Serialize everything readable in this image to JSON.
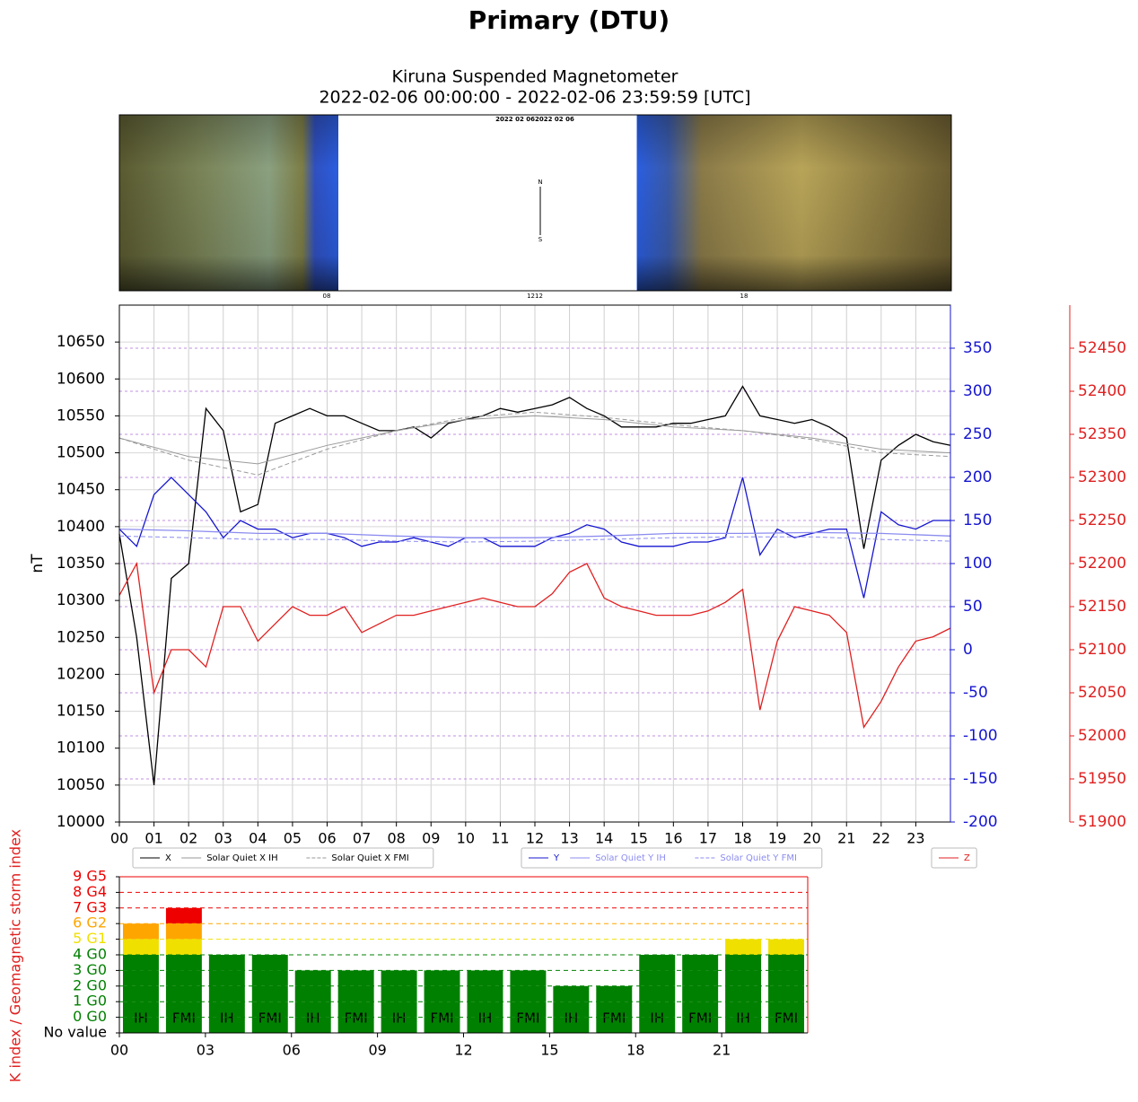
{
  "title": "Primary (DTU)",
  "keogram": {
    "title": "2022 02 062022 02 06",
    "ticks": [
      "08",
      "1212",
      "18"
    ],
    "north": "N",
    "south": "S"
  },
  "chart_data": [
    {
      "type": "line",
      "title": "Kiruna Suspended Magnetometer",
      "subtitle": "2022-02-06 00:00:00 - 2022-02-06 23:59:59 [UTC]",
      "y_label": "nT",
      "grid": true,
      "xlim": [
        0,
        24
      ],
      "xticks": [
        {
          "value": 0,
          "label": "00"
        },
        {
          "value": 1,
          "label": "01"
        },
        {
          "value": 2,
          "label": "02"
        },
        {
          "value": 3,
          "label": "03"
        },
        {
          "value": 4,
          "label": "04"
        },
        {
          "value": 5,
          "label": "05"
        },
        {
          "value": 6,
          "label": "06"
        },
        {
          "value": 7,
          "label": "07"
        },
        {
          "value": 8,
          "label": "08"
        },
        {
          "value": 9,
          "label": "09"
        },
        10,
        11,
        12,
        13,
        14,
        15,
        16,
        17,
        18,
        19,
        20,
        21,
        22,
        23
      ],
      "ylim": [
        10000,
        10700
      ],
      "yticks": [
        10000,
        10050,
        10100,
        10150,
        10200,
        10250,
        10300,
        10350,
        10400,
        10450,
        10500,
        10550,
        10600,
        10650
      ],
      "y2lim": [
        -200,
        400
      ],
      "y2color": "#1515d0",
      "y2ticks": [
        -200,
        -150,
        -100,
        -50,
        0,
        50,
        100,
        150,
        200,
        250,
        300,
        350
      ],
      "y3lim": [
        51900,
        52500
      ],
      "y3color": "#e02020",
      "y3ticks": [
        51900,
        51950,
        52000,
        52050,
        52100,
        52150,
        52200,
        52250,
        52300,
        52350,
        52400,
        52450
      ],
      "series": [
        {
          "name": "X",
          "color": "#000000",
          "axis": "y",
          "dash": "solid",
          "x": [
            0,
            0.5,
            1,
            1.5,
            2,
            2.5,
            3,
            3.5,
            4,
            4.5,
            5,
            5.5,
            6,
            6.5,
            7,
            7.5,
            8,
            8.5,
            9,
            9.5,
            10,
            10.5,
            11,
            11.5,
            12,
            12.5,
            13,
            13.5,
            14,
            14.5,
            15,
            15.5,
            16,
            16.5,
            17,
            17.5,
            18,
            18.5,
            19,
            19.5,
            20,
            20.5,
            21,
            21.5,
            22,
            22.5,
            23,
            23.5,
            24
          ],
          "values": [
            10390,
            10250,
            10050,
            10330,
            10350,
            10560,
            10530,
            10420,
            10430,
            10540,
            10550,
            10560,
            10550,
            10550,
            10540,
            10530,
            10530,
            10535,
            10520,
            10540,
            10545,
            10550,
            10560,
            10555,
            10560,
            10565,
            10575,
            10560,
            10550,
            10535,
            10535,
            10535,
            10540,
            10540,
            10545,
            10550,
            10590,
            10550,
            10545,
            10540,
            10545,
            10535,
            10520,
            10370,
            10490,
            10510,
            10525,
            10515,
            10510
          ]
        },
        {
          "name": "Solar Quiet X IH",
          "color": "#9a9a9a",
          "axis": "y",
          "dash": "solid",
          "x": [
            0,
            2,
            4,
            6,
            8,
            10,
            12,
            14,
            16,
            18,
            20,
            22,
            24
          ],
          "values": [
            10520,
            10495,
            10485,
            10510,
            10530,
            10545,
            10550,
            10545,
            10535,
            10530,
            10520,
            10505,
            10500
          ]
        },
        {
          "name": "Solar Quiet X FMI",
          "color": "#9a9a9a",
          "axis": "y",
          "dash": "dashed",
          "x": [
            0,
            2,
            4,
            6,
            8,
            10,
            12,
            14,
            16,
            18,
            20,
            22,
            24
          ],
          "values": [
            10520,
            10490,
            10470,
            10505,
            10530,
            10548,
            10555,
            10548,
            10538,
            10530,
            10518,
            10500,
            10495
          ]
        },
        {
          "name": "Y",
          "color": "#1515d0",
          "axis": "y2",
          "dash": "solid",
          "x": [
            0,
            0.5,
            1,
            1.5,
            2,
            2.5,
            3,
            3.5,
            4,
            4.5,
            5,
            5.5,
            6,
            6.5,
            7,
            7.5,
            8,
            8.5,
            9,
            9.5,
            10,
            10.5,
            11,
            11.5,
            12,
            12.5,
            13,
            13.5,
            14,
            14.5,
            15,
            15.5,
            16,
            16.5,
            17,
            17.5,
            18,
            18.5,
            19,
            19.5,
            20,
            20.5,
            21,
            21.5,
            22,
            22.5,
            23,
            23.5,
            24
          ],
          "values": [
            140,
            120,
            180,
            200,
            180,
            160,
            130,
            150,
            140,
            140,
            130,
            135,
            135,
            130,
            120,
            125,
            125,
            130,
            125,
            120,
            130,
            130,
            120,
            120,
            120,
            130,
            135,
            145,
            140,
            125,
            120,
            120,
            120,
            125,
            125,
            130,
            200,
            110,
            140,
            130,
            135,
            140,
            140,
            60,
            160,
            145,
            140,
            150,
            150
          ]
        },
        {
          "name": "Solar Quiet Y IH",
          "color": "#8c8cf0",
          "axis": "y2",
          "dash": "solid",
          "x": [
            0,
            2,
            4,
            6,
            8,
            10,
            12,
            14,
            16,
            18,
            20,
            22,
            24
          ],
          "values": [
            140,
            138,
            135,
            135,
            132,
            130,
            130,
            132,
            135,
            135,
            136,
            135,
            132
          ]
        },
        {
          "name": "Solar Quiet Y FMI",
          "color": "#8c8cf0",
          "axis": "y2",
          "dash": "dashed",
          "x": [
            0,
            2,
            4,
            6,
            8,
            10,
            12,
            14,
            16,
            18,
            20,
            22,
            24
          ],
          "values": [
            132,
            130,
            128,
            128,
            126,
            125,
            126,
            128,
            130,
            131,
            131,
            128,
            126
          ]
        },
        {
          "name": "Z",
          "color": "#e02020",
          "axis": "y3",
          "dash": "solid",
          "x": [
            0,
            0.5,
            1,
            1.5,
            2,
            2.5,
            3,
            3.5,
            4,
            4.5,
            5,
            5.5,
            6,
            6.5,
            7,
            7.5,
            8,
            8.5,
            9,
            9.5,
            10,
            10.5,
            11,
            11.5,
            12,
            12.5,
            13,
            13.5,
            14,
            14.5,
            15,
            15.5,
            16,
            16.5,
            17,
            17.5,
            18,
            18.5,
            19,
            19.5,
            20,
            20.5,
            21,
            21.5,
            22,
            22.5,
            23,
            23.5,
            24
          ],
          "values": [
            52163,
            52200,
            52050,
            52100,
            52100,
            52080,
            52150,
            52150,
            52110,
            52130,
            52150,
            52140,
            52140,
            52150,
            52120,
            52130,
            52140,
            52140,
            52145,
            52150,
            52155,
            52160,
            52155,
            52150,
            52150,
            52165,
            52190,
            52200,
            52160,
            52150,
            52145,
            52140,
            52140,
            52140,
            52145,
            52155,
            52170,
            52030,
            52110,
            52150,
            52145,
            52140,
            52120,
            52010,
            52040,
            52080,
            52110,
            52115,
            52125
          ]
        }
      ]
    },
    {
      "type": "bar",
      "y_label": "K index / Geomagnetic storm index",
      "xlim": [
        0,
        24
      ],
      "xticks": [
        {
          "value": 0,
          "label": "00"
        },
        {
          "value": 3,
          "label": "03"
        },
        {
          "value": 6,
          "label": "06"
        },
        {
          "value": 9,
          "label": "09"
        },
        12,
        15,
        18,
        21
      ],
      "ylim": [
        -1,
        9
      ],
      "yticks": [
        {
          "value": -1,
          "label": "No value",
          "color": "#000000"
        },
        {
          "value": 0,
          "label": "0 G0",
          "color": "#008000"
        },
        {
          "value": 1,
          "label": "1 G0",
          "color": "#008000"
        },
        {
          "value": 2,
          "label": "2 G0",
          "color": "#008000"
        },
        {
          "value": 3,
          "label": "3 G0",
          "color": "#008000"
        },
        {
          "value": 4,
          "label": "4 G0",
          "color": "#008000"
        },
        {
          "value": 5,
          "label": "5 G1",
          "color": "#f0e000"
        },
        {
          "value": 6,
          "label": "6 G2",
          "color": "#ffa500"
        },
        {
          "value": 7,
          "label": "7 G3",
          "color": "#ee0000"
        },
        {
          "value": 8,
          "label": "8 G4",
          "color": "#ee0000"
        },
        {
          "value": 9,
          "label": "9 G5",
          "color": "#ee0000"
        }
      ],
      "categories": [
        "IH",
        "FMI",
        "IH",
        "FMI",
        "IH",
        "FMI",
        "IH",
        "FMI",
        "IH",
        "FMI",
        "IH",
        "FMI",
        "IH",
        "FMI",
        "IH",
        "FMI"
      ],
      "x": [
        0.75,
        2.25,
        3.75,
        5.25,
        6.75,
        8.25,
        9.75,
        11.25,
        12.75,
        14.25,
        15.75,
        17.25,
        18.75,
        20.25,
        21.75,
        23.25
      ],
      "values": [
        6,
        7,
        4,
        4,
        3,
        3,
        3,
        3,
        3,
        3,
        2,
        2,
        4,
        4,
        5,
        5
      ]
    }
  ]
}
